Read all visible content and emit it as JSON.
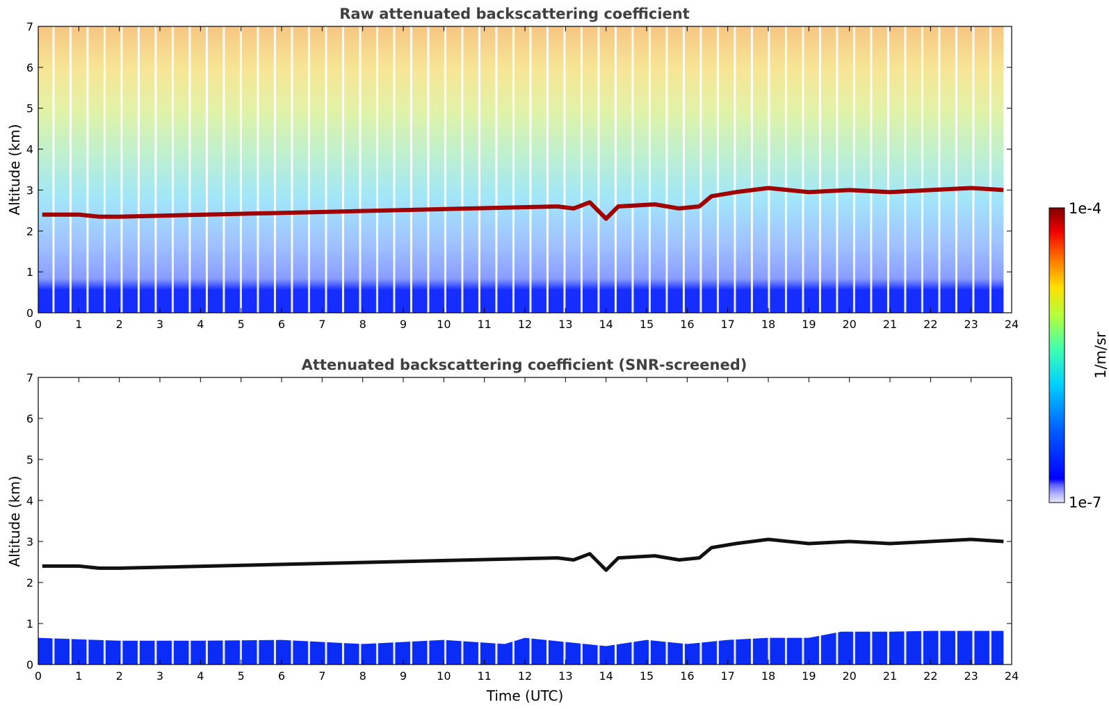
{
  "chart_data": [
    {
      "type": "heatmap",
      "title": "Raw attenuated backscattering coefficient",
      "xlabel": "",
      "ylabel": "Altitude (km)",
      "xlim": [
        0,
        24
      ],
      "ylim": [
        0,
        7
      ],
      "x_ticks": [
        "0",
        "1",
        "2",
        "3",
        "4",
        "5",
        "6",
        "7",
        "8",
        "9",
        "10",
        "11",
        "12",
        "13",
        "14",
        "15",
        "16",
        "17",
        "18",
        "19",
        "20",
        "21",
        "22",
        "23",
        "24"
      ],
      "y_ticks": [
        "0",
        "1",
        "2",
        "3",
        "4",
        "5",
        "6",
        "7"
      ],
      "data_end_hour": 23.8,
      "layers": [
        {
          "label": "boundary layer (surface, 1e-5 .. 1e-6 1/m/sr)",
          "top_km": 0.5
        },
        {
          "label": "cloud base trace (1e-4 1/m/sr)",
          "points": [
            [
              0.1,
              2.4
            ],
            [
              1.0,
              2.4
            ],
            [
              1.5,
              2.35
            ],
            [
              2.0,
              2.35
            ],
            [
              12.8,
              2.6
            ],
            [
              13.2,
              2.55
            ],
            [
              13.6,
              2.7
            ],
            [
              14.0,
              2.3
            ],
            [
              14.3,
              2.6
            ],
            [
              15.2,
              2.65
            ],
            [
              15.8,
              2.55
            ],
            [
              16.3,
              2.6
            ],
            [
              16.6,
              2.85
            ],
            [
              17.2,
              2.95
            ],
            [
              18.0,
              3.05
            ],
            [
              19.0,
              2.95
            ],
            [
              20.0,
              3.0
            ],
            [
              21.0,
              2.95
            ],
            [
              22.0,
              3.0
            ],
            [
              23.0,
              3.05
            ],
            [
              23.8,
              3.0
            ]
          ]
        }
      ]
    },
    {
      "type": "heatmap",
      "title": "Attenuated backscattering coefficient (SNR-screened)",
      "xlabel": "Time (UTC)",
      "ylabel": "Altitude (km)",
      "xlim": [
        0,
        24
      ],
      "ylim": [
        0,
        7
      ],
      "x_ticks": [
        "0",
        "1",
        "2",
        "3",
        "4",
        "5",
        "6",
        "7",
        "8",
        "9",
        "10",
        "11",
        "12",
        "13",
        "14",
        "15",
        "16",
        "17",
        "18",
        "19",
        "20",
        "21",
        "22",
        "23",
        "24"
      ],
      "y_ticks": [
        "0",
        "1",
        "2",
        "3",
        "4",
        "5",
        "6",
        "7"
      ],
      "boundary_layer_top_km": [
        [
          0,
          0.65
        ],
        [
          2,
          0.58
        ],
        [
          4,
          0.58
        ],
        [
          6,
          0.6
        ],
        [
          8,
          0.5
        ],
        [
          10,
          0.6
        ],
        [
          11.5,
          0.5
        ],
        [
          12,
          0.65
        ],
        [
          14,
          0.45
        ],
        [
          15,
          0.6
        ],
        [
          16,
          0.5
        ],
        [
          17,
          0.6
        ],
        [
          18,
          0.65
        ],
        [
          19,
          0.65
        ],
        [
          19.8,
          0.8
        ],
        [
          21,
          0.8
        ],
        [
          22,
          0.82
        ],
        [
          23.8,
          0.82
        ]
      ]
    }
  ],
  "colorbar": {
    "label": "1/m/sr",
    "max_label": "1e-4",
    "min_label": "1e-7",
    "scale": "log",
    "colormap": "jet"
  }
}
